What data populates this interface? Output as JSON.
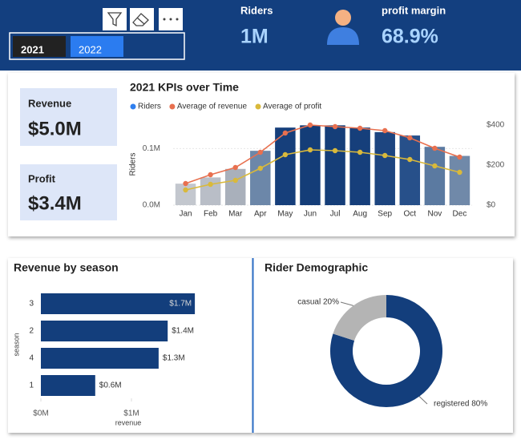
{
  "slicer": {
    "options": [
      "2021",
      "2022"
    ]
  },
  "header": {
    "cards": [
      {
        "label": "Riders",
        "value": "1M"
      },
      {
        "label": "profit margin",
        "value": "68.9%"
      }
    ]
  },
  "kpis": [
    {
      "label": "Revenue",
      "value": "$5.0M"
    },
    {
      "label": "Profit",
      "value": "$3.4M"
    }
  ],
  "chart_data": [
    {
      "type": "combo",
      "title": "2021 KPIs over Time",
      "ylabel": "Riders",
      "categories": [
        "Jan",
        "Feb",
        "Mar",
        "Apr",
        "May",
        "Jun",
        "Jul",
        "Aug",
        "Sep",
        "Oct",
        "Nov",
        "Dec"
      ],
      "series": [
        {
          "name": "Riders",
          "kind": "bar",
          "color": "#2f7fef",
          "colors": [
            "#c3c7ce",
            "#b9bec7",
            "#a9b0bb",
            "#6c87a9",
            "#163f7b",
            "#143d78",
            "#153e79",
            "#163f7b",
            "#1d4580",
            "#27508a",
            "#5b7aa1",
            "#7089a9"
          ],
          "values": [
            38000,
            49000,
            64000,
            96000,
            137000,
            141000,
            141000,
            137000,
            129000,
            123000,
            103000,
            87000
          ]
        },
        {
          "name": "Average of revenue",
          "kind": "line",
          "axis": "y2",
          "color": "#e8704f",
          "values": [
            108,
            152,
            188,
            264,
            360,
            400,
            392,
            384,
            372,
            336,
            284,
            240
          ]
        },
        {
          "name": "Average of profit",
          "kind": "line",
          "axis": "y2",
          "color": "#d9b93b",
          "values": [
            76,
            104,
            124,
            184,
            252,
            276,
            272,
            264,
            248,
            228,
            196,
            164
          ]
        }
      ],
      "ylim": [
        0,
        150000
      ],
      "yticks": [
        {
          "value": 0,
          "label": "0.0M"
        },
        {
          "value": 100000,
          "label": "0.1M"
        }
      ],
      "y2lim": [
        0,
        424
      ],
      "y2ticks": [
        {
          "value": 0,
          "label": "$0"
        },
        {
          "value": 200,
          "label": "$200"
        },
        {
          "value": 400,
          "label": "$400"
        }
      ],
      "legend": "top-left"
    },
    {
      "type": "hbar",
      "title": "Revenue by season",
      "xlabel": "revenue",
      "ylabel": "season",
      "categories": [
        "3",
        "2",
        "4",
        "1"
      ],
      "values": [
        1700000,
        1400000,
        1300000,
        600000
      ],
      "value_labels": [
        "$1.7M",
        "$1.4M",
        "$1.3M",
        "$0.6M"
      ],
      "color": "#133e7c",
      "xlim": [
        0,
        1750000
      ],
      "xticks": [
        {
          "value": 0,
          "label": "$0M"
        },
        {
          "value": 1000000,
          "label": "$1M"
        }
      ]
    },
    {
      "type": "donut",
      "title": "Rider Demographic",
      "categories": [
        "casual",
        "registered"
      ],
      "values": [
        20,
        80
      ],
      "value_labels": [
        "casual 20%",
        "registered 80%"
      ],
      "colors": [
        "#b4b4b4",
        "#133e7c"
      ]
    }
  ]
}
